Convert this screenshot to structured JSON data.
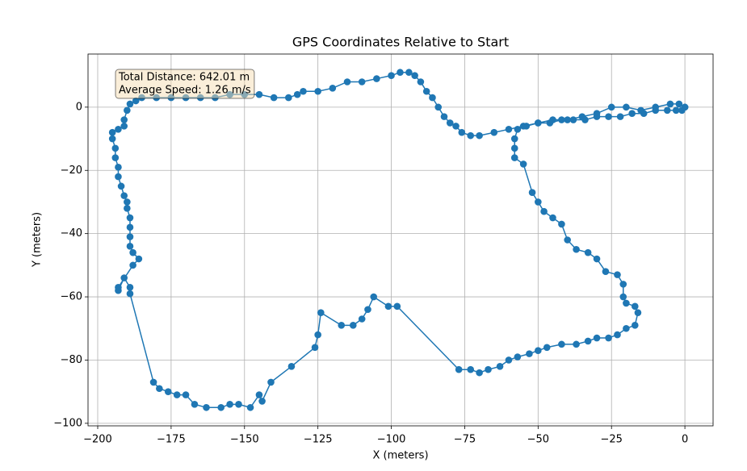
{
  "chart_data": {
    "type": "line",
    "title": "GPS Coordinates Relative to Start",
    "x_label": "X (meters)",
    "y_label": "Y (meters)",
    "annotation": [
      "Total Distance: 642.01 m",
      "Average Speed: 1.26 m/s"
    ],
    "grid": true,
    "marker": "o",
    "xlim": [
      -203.3,
      9.6
    ],
    "ylim": [
      -100.8,
      16.8
    ],
    "xticks": [
      {
        "value": -200,
        "label": "−200"
      },
      {
        "value": -175,
        "label": "−175"
      },
      {
        "value": -150,
        "label": "−150"
      },
      {
        "value": -125,
        "label": "−125"
      },
      {
        "value": -100,
        "label": "−100"
      },
      {
        "value": -75,
        "label": "−75"
      },
      {
        "value": -50,
        "label": "−50"
      },
      {
        "value": -25,
        "label": "−25"
      },
      0
    ],
    "yticks": [
      {
        "value": -100,
        "label": "−100"
      },
      {
        "value": -80,
        "label": "−80"
      },
      {
        "value": -60,
        "label": "−60"
      },
      {
        "value": -40,
        "label": "−40"
      },
      {
        "value": -20,
        "label": "−20"
      },
      0
    ],
    "x": [
      0,
      -1,
      -3,
      -6,
      -10,
      -14,
      -18,
      -22,
      -26,
      -30,
      -34,
      -38,
      -42,
      -46,
      -50,
      -54,
      -57,
      -58,
      -58,
      -58,
      -55,
      -52,
      -50,
      -48,
      -45,
      -42,
      -40,
      -37,
      -33,
      -30,
      -27,
      -23,
      -21,
      -21,
      -20,
      -17,
      -16,
      -17,
      -20,
      -23,
      -26,
      -30,
      -33,
      -37,
      -42,
      -47,
      -50,
      -53,
      -57,
      -60,
      -63,
      -67,
      -70,
      -73,
      -77,
      -98,
      -101,
      -106,
      -108,
      -110,
      -113,
      -117,
      -124,
      -125,
      -126,
      -134,
      -141,
      -144,
      -145,
      -148,
      -152,
      -155,
      -158,
      -163,
      -167,
      -170,
      -173,
      -176,
      -179,
      -181,
      -189,
      -189,
      -191,
      -193,
      -193,
      -188,
      -186,
      -188,
      -189,
      -189,
      -189,
      -189,
      -190,
      -190,
      -191,
      -192,
      -193,
      -193,
      -194,
      -194,
      -195,
      -195,
      -193,
      -191,
      -191,
      -190,
      -189,
      -187,
      -185,
      -180,
      -175,
      -170,
      -165,
      -160,
      -155,
      -150,
      -145,
      -140,
      -135,
      -132,
      -130,
      -125,
      -120,
      -115,
      -110,
      -105,
      -100,
      -97,
      -94,
      -92,
      -90,
      -88,
      -86,
      -84,
      -82,
      -80,
      -78,
      -76,
      -73,
      -70,
      -65,
      -60,
      -55,
      -50,
      -45,
      -40,
      -35,
      -30,
      -25,
      -20,
      -15,
      -10,
      -5,
      -2,
      0
    ],
    "series": [
      {
        "color": "#1f77b4",
        "values": [
          0,
          -1,
          -1,
          -1,
          -1,
          -2,
          -2,
          -3,
          -3,
          -3,
          -4,
          -4,
          -4,
          -5,
          -5,
          -6,
          -7,
          -10,
          -13,
          -16,
          -18,
          -27,
          -30,
          -33,
          -35,
          -37,
          -42,
          -45,
          -46,
          -48,
          -52,
          -53,
          -56,
          -60,
          -62,
          -63,
          -65,
          -69,
          -70,
          -72,
          -73,
          -73,
          -74,
          -75,
          -75,
          -76,
          -77,
          -78,
          -79,
          -80,
          -82,
          -83,
          -84,
          -83,
          -83,
          -63,
          -63,
          -60,
          -64,
          -67,
          -69,
          -69,
          -65,
          -72,
          -76,
          -82,
          -87,
          -93,
          -91,
          -95,
          -94,
          -94,
          -95,
          -95,
          -94,
          -91,
          -91,
          -90,
          -89,
          -87,
          -59,
          -57,
          -54,
          -58,
          -57,
          -50,
          -48,
          -46,
          -44,
          -41,
          -38,
          -35,
          -32,
          -30,
          -28,
          -25,
          -22,
          -19,
          -16,
          -13,
          -10,
          -8,
          -7,
          -6,
          -4,
          -1,
          1,
          2,
          3,
          3,
          3,
          3,
          3,
          3,
          4,
          4,
          4,
          3,
          3,
          4,
          5,
          5,
          6,
          8,
          8,
          9,
          10,
          11,
          11,
          10,
          8,
          5,
          3,
          0,
          -3,
          -5,
          -6,
          -8,
          -9,
          -9,
          -8,
          -7,
          -6,
          -5,
          -4,
          -4,
          -3,
          -2,
          0,
          0,
          -1,
          0,
          1,
          1,
          0
        ]
      }
    ]
  }
}
